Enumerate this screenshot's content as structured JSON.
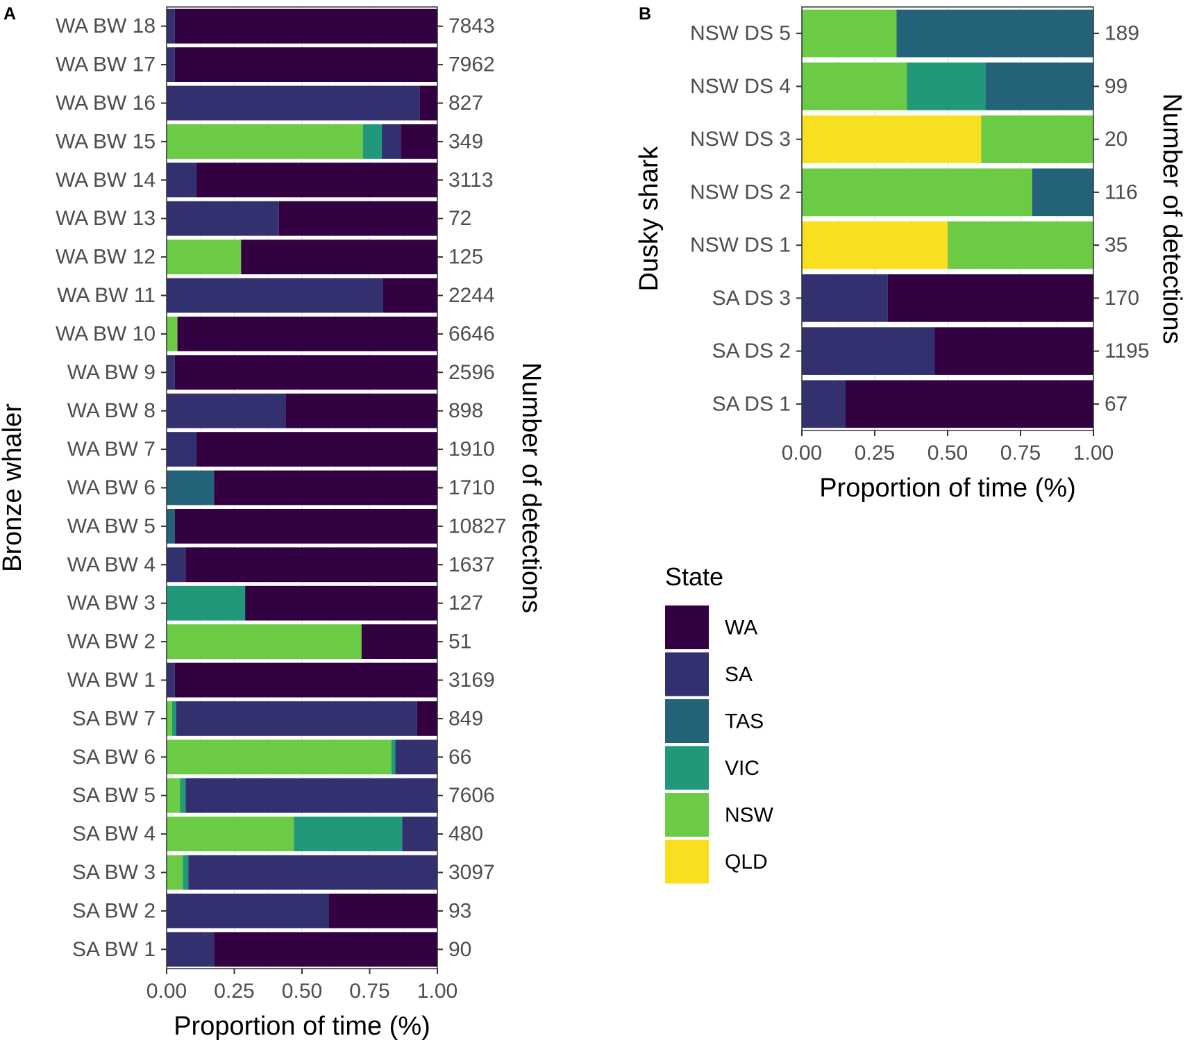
{
  "colors": {
    "WA": "#330042",
    "SA": "#32306E",
    "TAS": "#236279",
    "VIC": "#21987A",
    "NSW": "#6CCB45",
    "QLD": "#F8E021"
  },
  "legend": {
    "title": "State",
    "entries": [
      "WA",
      "SA",
      "TAS",
      "VIC",
      "NSW",
      "QLD"
    ]
  },
  "chart_data": [
    {
      "panel": "A",
      "type": "bar",
      "orientation": "horizontal",
      "stacked": true,
      "ylabel": "Bronze whaler",
      "xlabel": "Proportion of time (%)",
      "secondary_ylabel": "Number of detections",
      "xlim": [
        0,
        1
      ],
      "xticks": [
        "0.00",
        "0.25",
        "0.50",
        "0.75",
        "1.00"
      ],
      "stack_order": [
        "NSW",
        "VIC",
        "TAS",
        "SA",
        "WA"
      ],
      "categories": [
        "WA BW 18",
        "WA BW 17",
        "WA BW 16",
        "WA BW 15",
        "WA BW 14",
        "WA BW 13",
        "WA BW 12",
        "WA BW 11",
        "WA BW 10",
        "WA BW 9",
        "WA BW 8",
        "WA BW 7",
        "WA BW 6",
        "WA BW 5",
        "WA BW 4",
        "WA BW 3",
        "WA BW 2",
        "WA BW 1",
        "SA BW 7",
        "SA BW 6",
        "SA BW 5",
        "SA BW 4",
        "SA BW 3",
        "SA BW 2",
        "SA BW 1"
      ],
      "detections": [
        "7843",
        "7962",
        "827",
        "349",
        "3113",
        "72",
        "125",
        "2244",
        "6646",
        "2596",
        "898",
        "1910",
        "1710",
        "10827",
        "1637",
        "127",
        "51",
        "3169",
        "849",
        "66",
        "7606",
        "480",
        "3097",
        "93",
        "90"
      ],
      "series": [
        {
          "name": "NSW",
          "values": [
            0,
            0,
            0,
            0.725,
            0,
            0,
            0.275,
            0,
            0.04,
            0,
            0,
            0,
            0,
            0,
            0,
            0,
            0.72,
            0,
            0.02,
            0.83,
            0.05,
            0.47,
            0.06,
            0,
            0
          ]
        },
        {
          "name": "VIC",
          "values": [
            0,
            0,
            0,
            0.07,
            0,
            0,
            0,
            0,
            0,
            0,
            0,
            0,
            0,
            0,
            0,
            0.29,
            0,
            0,
            0.015,
            0.015,
            0.02,
            0.4,
            0.02,
            0,
            0
          ]
        },
        {
          "name": "TAS",
          "values": [
            0,
            0,
            0,
            0,
            0,
            0,
            0,
            0,
            0,
            0,
            0,
            0,
            0.175,
            0.03,
            0,
            0,
            0,
            0,
            0,
            0,
            0,
            0,
            0,
            0,
            0
          ]
        },
        {
          "name": "SA",
          "values": [
            0.03,
            0.03,
            0.935,
            0.07,
            0.11,
            0.415,
            0,
            0.8,
            0,
            0.03,
            0.44,
            0.11,
            0,
            0,
            0.07,
            0,
            0,
            0.03,
            0.89,
            0.155,
            0.93,
            0.13,
            0.92,
            0.6,
            0.175
          ]
        },
        {
          "name": "WA",
          "values": [
            0.97,
            0.97,
            0.065,
            0.135,
            0.89,
            0.585,
            0.725,
            0.2,
            0.96,
            0.97,
            0.56,
            0.89,
            0.825,
            0.97,
            0.93,
            0.71,
            0.28,
            0.97,
            0.075,
            0,
            0,
            0,
            0,
            0.4,
            0.825
          ]
        }
      ]
    },
    {
      "panel": "B",
      "type": "bar",
      "orientation": "horizontal",
      "stacked": true,
      "ylabel": "Dusky shark",
      "xlabel": "Proportion of time (%)",
      "secondary_ylabel": "Number of detections",
      "xlim": [
        0,
        1
      ],
      "xticks": [
        "0.00",
        "0.25",
        "0.50",
        "0.75",
        "1.00"
      ],
      "stack_order": [
        "QLD",
        "NSW",
        "VIC",
        "TAS",
        "SA",
        "WA"
      ],
      "categories": [
        "NSW DS 5",
        "NSW DS 4",
        "NSW DS 3",
        "NSW DS 2",
        "NSW DS 1",
        "SA DS 3",
        "SA DS 2",
        "SA DS 1"
      ],
      "detections": [
        "189",
        "99",
        "20",
        "116",
        "35",
        "170",
        "1195",
        "67"
      ],
      "series": [
        {
          "name": "QLD",
          "values": [
            0,
            0,
            0.615,
            0,
            0.5,
            0,
            0,
            0
          ]
        },
        {
          "name": "NSW",
          "values": [
            0.325,
            0.36,
            0.385,
            0.79,
            0.5,
            0,
            0,
            0
          ]
        },
        {
          "name": "VIC",
          "values": [
            0,
            0.27,
            0,
            0,
            0,
            0,
            0,
            0
          ]
        },
        {
          "name": "TAS",
          "values": [
            0.675,
            0.37,
            0,
            0.21,
            0,
            0,
            0,
            0
          ]
        },
        {
          "name": "SA",
          "values": [
            0,
            0,
            0,
            0,
            0,
            0.295,
            0.455,
            0.15
          ]
        },
        {
          "name": "WA",
          "values": [
            0,
            0,
            0,
            0,
            0,
            0.705,
            0.545,
            0.85
          ]
        }
      ]
    }
  ]
}
